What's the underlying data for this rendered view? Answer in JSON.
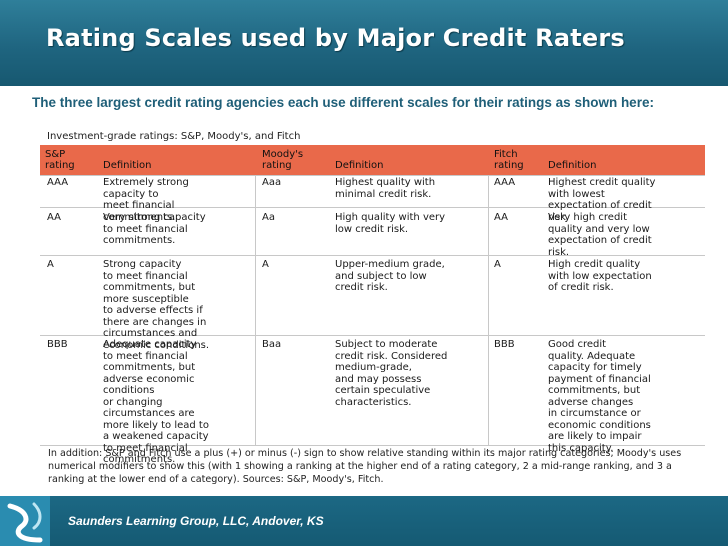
{
  "header": {
    "title": "Rating Scales used by Major Credit Raters"
  },
  "intro": "The three largest credit rating agencies each use different scales for their ratings as shown here:",
  "figure": {
    "title": "Investment-grade ratings: S&P, Moody's, and Fitch",
    "headers": {
      "sp_rating": "S&P\nrating",
      "sp_def": "Definition",
      "moodys_rating": "Moody's\nrating",
      "moodys_def": "Definition",
      "fitch_rating": "Fitch\nrating",
      "fitch_def": "Definition"
    },
    "rows": [
      {
        "sp": "AAA",
        "sp_def": "Extremely strong\ncapacity to\nmeet financial\ncommitments.",
        "moodys": "Aaa",
        "moodys_def": "Highest quality with\nminimal credit risk.",
        "fitch": "AAA",
        "fitch_def": "Highest credit quality\nwith lowest\nexpectation of credit\nrisk."
      },
      {
        "sp": "AA",
        "sp_def": "Very strong capacity\nto meet financial\ncommitments.",
        "moodys": "Aa",
        "moodys_def": "High quality with very\nlow credit risk.",
        "fitch": "AA",
        "fitch_def": "Very high credit\nquality and very low\nexpectation of credit\nrisk."
      },
      {
        "sp": "A",
        "sp_def": "Strong capacity\nto meet financial\ncommitments, but\nmore susceptible\nto adverse effects if\nthere are changes in\ncircumstances and\neconomic conditions.",
        "moodys": "A",
        "moodys_def": "Upper-medium grade,\nand subject to low\ncredit risk.",
        "fitch": "A",
        "fitch_def": "High credit quality\nwith low expectation\nof credit risk."
      },
      {
        "sp": "BBB",
        "sp_def": "Adequate capacity\nto meet financial\ncommitments, but\nadverse economic\nconditions\nor changing\ncircumstances are\nmore likely to lead to\na weakened capacity\nto meet financial\ncommitments.",
        "moodys": "Baa",
        "moodys_def": "Subject to moderate\ncredit risk. Considered\nmedium-grade,\nand may possess\ncertain speculative\ncharacteristics.",
        "fitch": "BBB",
        "fitch_def": "Good credit\nquality. Adequate\ncapacity for timely\npayment of financial\ncommitments, but\nadverse changes\nin circumstance or\neconomic conditions\nare likely to impair\nthis capacity."
      }
    ],
    "footnote": "In addition: S&P and Fitch use a plus (+) or minus (-) sign to show relative standing within its major rating categories; Moody's uses numerical modifiers to show this (with 1 showing a ranking at the higher end of a rating category, 2 a mid-range ranking, and 3 a ranking at the lower end of a category). Sources: S&P, Moody's, Fitch."
  },
  "footer": {
    "credit": "Saunders Learning Group, LLC, Andover, KS"
  },
  "colors": {
    "header_bg": "#1f6580",
    "band": "#e9694a",
    "intro_text": "#1f5f78"
  }
}
